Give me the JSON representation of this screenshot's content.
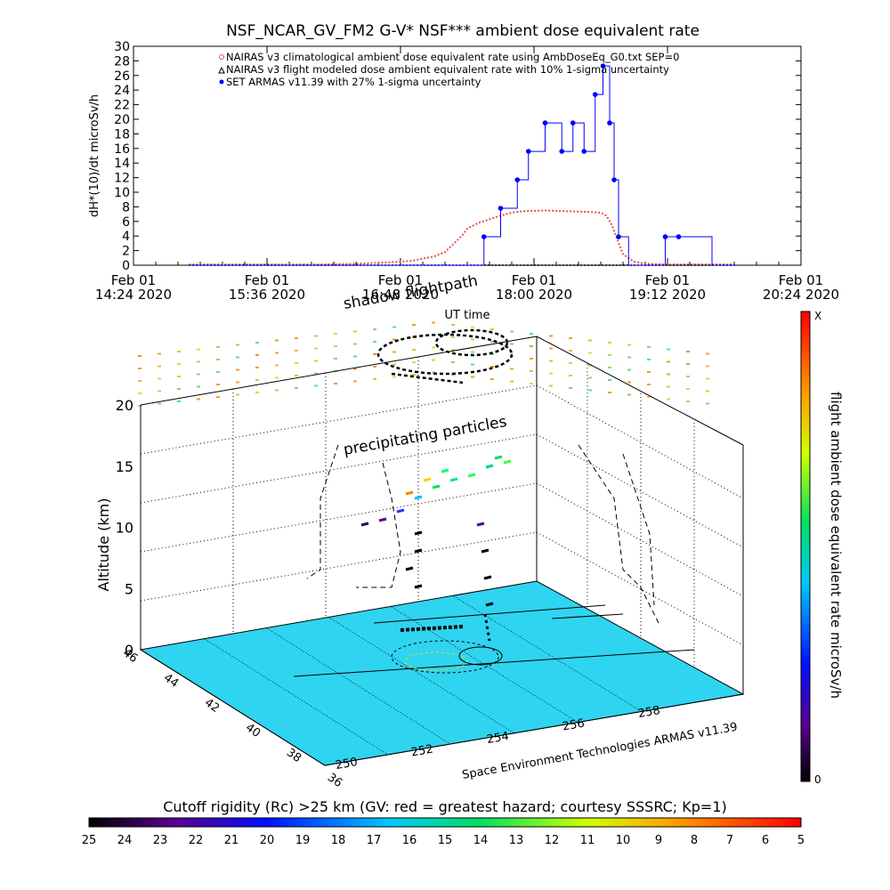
{
  "chart_data": [
    {
      "type": "line",
      "title": "NSF_NCAR_GV_FM2 G-V* NSF*** ambient dose equivalent rate",
      "ylabel": "dH*(10)/dt microSv/h",
      "xlabel": "UT time",
      "ylim": [
        0,
        30
      ],
      "yticks": [
        "0",
        "2",
        "4",
        "6",
        "8",
        "10",
        "12",
        "14",
        "16",
        "18",
        "20",
        "22",
        "24",
        "26",
        "28",
        "30"
      ],
      "xlim": [
        "14:24",
        "20:24"
      ],
      "xticks": [
        {
          "date": "Feb 01",
          "time": "14:24 2020",
          "hours": 0
        },
        {
          "date": "Feb 01",
          "time": "15:36 2020",
          "hours": 1.2
        },
        {
          "date": "Feb 01",
          "time": "16:48 2020",
          "hours": 2.4
        },
        {
          "date": "Feb 01",
          "time": "18:00 2020",
          "hours": 3.6
        },
        {
          "date": "Feb 01",
          "time": "19:12 2020",
          "hours": 4.8
        },
        {
          "date": "Feb 01",
          "time": "20:24 2020",
          "hours": 6.0
        }
      ],
      "legend": [
        "NAIRAS v3 climatological ambient dose equivalent rate using AmbDoseEq_G0.txt SEP=0",
        "NAIRAS v3 flight modeled dose ambient equivalent rate with 10% 1-sigma uncertainty",
        "SET ARMAS v11.39 with 27% 1-sigma uncertainty"
      ],
      "series": [
        {
          "name": "NAIRAS v3 climatological ambient dose equivalent rate using AmbDoseEq_G0.txt SEP=0",
          "color": "#e05050",
          "x": [
            0.5,
            0.8,
            1.2,
            1.6,
            2.0,
            2.3,
            2.5,
            2.6,
            2.7,
            2.8,
            2.95,
            3.0,
            3.1,
            3.2,
            3.3,
            3.4,
            3.5,
            3.7,
            3.9,
            4.1,
            4.2,
            4.25,
            4.3,
            4.35,
            4.4,
            4.5,
            4.6,
            4.8,
            5.0,
            5.2,
            5.4
          ],
          "values": [
            0.1,
            0.1,
            0.1,
            0.1,
            0.2,
            0.4,
            0.6,
            0.9,
            1.2,
            1.8,
            4.0,
            5.0,
            5.8,
            6.3,
            6.8,
            7.2,
            7.4,
            7.5,
            7.4,
            7.3,
            7.2,
            6.8,
            5.5,
            3.5,
            1.5,
            0.5,
            0.2,
            0.1,
            0.1,
            0.1,
            0.1
          ]
        },
        {
          "name": "NAIRAS v3 flight modeled dose ambient equivalent rate with 10% 1-sigma uncertainty",
          "color": "#000000",
          "x": [
            0.5,
            5.4
          ],
          "values": [
            0,
            0
          ]
        },
        {
          "name": "SET ARMAS v11.39 with 27% 1-sigma uncertainty",
          "color": "#0000ff",
          "x": [
            0.5,
            1.5,
            2.5,
            3.0,
            3.15,
            3.3,
            3.45,
            3.55,
            3.7,
            3.85,
            3.95,
            4.05,
            4.15,
            4.22,
            4.28,
            4.32,
            4.36,
            4.45,
            4.6,
            4.78,
            4.9,
            5.2,
            5.4
          ],
          "values": [
            0,
            0,
            0,
            0,
            3.9,
            7.8,
            11.7,
            15.6,
            19.5,
            15.6,
            19.5,
            15.6,
            23.4,
            27.3,
            19.5,
            11.7,
            3.9,
            0,
            0,
            3.9,
            3.9,
            0,
            0
          ]
        }
      ]
    },
    {
      "type": "scatter",
      "title": "shadow flightpath",
      "subtitle": "precipitating particles",
      "zlabel": "Altitude (km)",
      "zticks": [
        "0",
        "5",
        "10",
        "15",
        "20"
      ],
      "xticks": [
        "250",
        "252",
        "254",
        "256",
        "258"
      ],
      "yticks": [
        "36",
        "38",
        "40",
        "42",
        "44",
        "46"
      ],
      "credit": "Space Environment Technologies ARMAS v11.39",
      "ground_color": "#2fd4f0"
    },
    {
      "type": "heatmap",
      "colorbar_label": "flight ambient dose equivalent rate microSv/h",
      "colorbar_top": "X",
      "colorbar_bottom": "0"
    },
    {
      "type": "heatmap",
      "colorbar_label": "Cutoff rigidity (Rc) >25 km (GV: red = greatest hazard; courtesy SSSRC; Kp=1)",
      "ticks": [
        "25",
        "24",
        "23",
        "22",
        "21",
        "20",
        "19",
        "18",
        "17",
        "16",
        "15",
        "14",
        "13",
        "12",
        "11",
        "10",
        "9",
        "8",
        "7",
        "6",
        "5"
      ]
    }
  ]
}
